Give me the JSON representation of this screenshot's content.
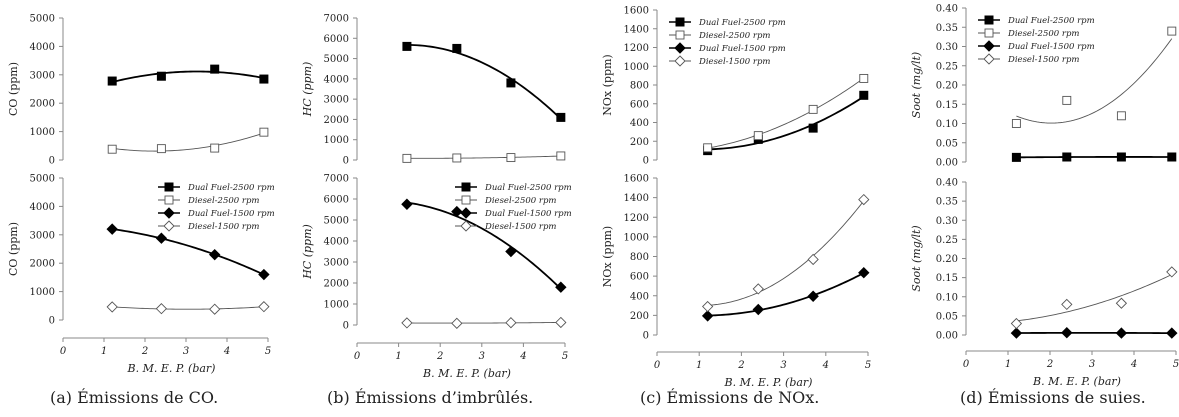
{
  "panels": [
    {
      "caption": "(a) Émissions de CO.",
      "xlabel": "B. M. E. P. (bar)",
      "xlim": [
        0,
        5
      ],
      "xticks": [
        0,
        1,
        2,
        3,
        4,
        5
      ],
      "legend_in": "bottom",
      "top": {
        "ylabel": "CO (ppm)",
        "ylim": [
          0,
          5000
        ],
        "yticks": [
          0,
          1000,
          2000,
          3000,
          4000,
          5000
        ],
        "ytick_labels": [
          "0",
          "1000",
          "2000",
          "3000",
          "4000",
          "5000"
        ]
      },
      "bottom": {
        "ylabel": "CO (ppm)",
        "ylim": [
          0,
          5000
        ],
        "yticks": [
          0,
          1000,
          2000,
          3000,
          4000,
          5000
        ],
        "ytick_labels": [
          "0",
          "1000",
          "2000",
          "3000",
          "4000",
          "5000"
        ]
      }
    },
    {
      "caption": "(b) Émissions d’imbrûlés.",
      "xlabel": "B. M. E. P. (bar)",
      "xlim": [
        0,
        5
      ],
      "xticks": [
        0,
        1,
        2,
        3,
        4,
        5
      ],
      "legend_in": "bottom",
      "top": {
        "ylabel": "HC (ppm)",
        "ylim": [
          0,
          7000
        ],
        "yticks": [
          0,
          1000,
          2000,
          3000,
          4000,
          5000,
          6000,
          7000
        ],
        "ytick_labels": [
          "0",
          "1000",
          "2000",
          "3000",
          "4000",
          "5000",
          "6000",
          "7000"
        ]
      },
      "bottom": {
        "ylabel": "HC (ppm)",
        "ylim": [
          0,
          7000
        ],
        "yticks": [
          0,
          1000,
          2000,
          3000,
          4000,
          5000,
          6000,
          7000
        ],
        "ytick_labels": [
          "0",
          "1000",
          "2000",
          "3000",
          "4000",
          "5000",
          "6000",
          "7000"
        ]
      }
    },
    {
      "caption": "(c) Émissions de NOx.",
      "xlabel": "B. M. E. P. (bar)",
      "xlim": [
        0,
        5
      ],
      "xticks": [
        0,
        1,
        2,
        3,
        4,
        5
      ],
      "legend_in": "top",
      "top": {
        "ylabel": "NOx (ppm)",
        "ylim": [
          0,
          1600
        ],
        "yticks": [
          0,
          200,
          400,
          600,
          800,
          1000,
          1200,
          1400,
          1600
        ],
        "ytick_labels": [
          "0",
          "200",
          "400",
          "600",
          "800",
          "1000",
          "1200",
          "1400",
          "1600"
        ]
      },
      "bottom": {
        "ylabel": "NOx (ppm)",
        "ylim": [
          0,
          1600
        ],
        "yticks": [
          0,
          200,
          400,
          600,
          800,
          1000,
          1200,
          1400,
          1600
        ],
        "ytick_labels": [
          "0",
          "200",
          "400",
          "600",
          "800",
          "1000",
          "1200",
          "1400",
          "1600"
        ]
      }
    },
    {
      "caption": "(d) Émissions de suies.",
      "xlabel": "B. M. E. P. (bar)",
      "xlim": [
        0,
        5
      ],
      "xticks": [
        0,
        1,
        2,
        3,
        4,
        5
      ],
      "legend_in": "top",
      "top": {
        "ylabel": "Soot (mg/lt)",
        "ylim": [
          0,
          0.4
        ],
        "yticks": [
          0,
          0.05,
          0.1,
          0.15,
          0.2,
          0.25,
          0.3,
          0.35,
          0.4
        ],
        "ytick_labels": [
          "0.00",
          "0.05",
          "0.10",
          "0.15",
          "0.20",
          "0.25",
          "0.30",
          "0.35",
          "0.40"
        ]
      },
      "bottom": {
        "ylabel": "Soot (mg/lt)",
        "ylim": [
          0,
          0.4
        ],
        "yticks": [
          0,
          0.05,
          0.1,
          0.15,
          0.2,
          0.25,
          0.3,
          0.35,
          0.4
        ],
        "ytick_labels": [
          "0.00",
          "0.05",
          "0.10",
          "0.15",
          "0.20",
          "0.25",
          "0.30",
          "0.35",
          "0.40"
        ]
      }
    }
  ],
  "legend": [
    {
      "name": "Dual Fuel-2500 rpm",
      "marker": "square-filled"
    },
    {
      "name": "Diesel-2500 rpm",
      "marker": "square-open"
    },
    {
      "name": "Dual Fuel-1500 rpm",
      "marker": "diamond-filled"
    },
    {
      "name": "Diesel-1500 rpm",
      "marker": "diamond-open"
    }
  ],
  "chart_data": [
    {
      "type": "scatter",
      "panel": "a",
      "subplot": "top",
      "series": [
        {
          "name": "Dual Fuel-2500 rpm",
          "x": [
            1.2,
            2.4,
            3.7,
            4.9
          ],
          "y": [
            2780,
            2950,
            3200,
            2850
          ]
        },
        {
          "name": "Diesel-2500 rpm",
          "x": [
            1.2,
            2.4,
            3.7,
            4.9
          ],
          "y": [
            380,
            400,
            420,
            980
          ]
        }
      ]
    },
    {
      "type": "scatter",
      "panel": "a",
      "subplot": "bottom",
      "series": [
        {
          "name": "Dual Fuel-1500 rpm",
          "x": [
            1.2,
            2.4,
            3.7,
            4.9
          ],
          "y": [
            3200,
            2880,
            2300,
            1600
          ]
        },
        {
          "name": "Diesel-1500 rpm",
          "x": [
            1.2,
            2.4,
            3.7,
            4.9
          ],
          "y": [
            460,
            400,
            380,
            470
          ]
        }
      ]
    },
    {
      "type": "scatter",
      "panel": "b",
      "subplot": "top",
      "series": [
        {
          "name": "Dual Fuel-2500 rpm",
          "x": [
            1.2,
            2.4,
            3.7,
            4.9
          ],
          "y": [
            5600,
            5500,
            3800,
            2100
          ]
        },
        {
          "name": "Diesel-2500 rpm",
          "x": [
            1.2,
            2.4,
            3.7,
            4.9
          ],
          "y": [
            80,
            100,
            120,
            200
          ]
        }
      ]
    },
    {
      "type": "scatter",
      "panel": "b",
      "subplot": "bottom",
      "series": [
        {
          "name": "Dual Fuel-1500 rpm",
          "x": [
            1.2,
            2.4,
            3.7,
            4.9
          ],
          "y": [
            5750,
            5400,
            3500,
            1800
          ]
        },
        {
          "name": "Diesel-1500 rpm",
          "x": [
            1.2,
            2.4,
            3.7,
            4.9
          ],
          "y": [
            100,
            80,
            110,
            120
          ]
        }
      ]
    },
    {
      "type": "scatter",
      "panel": "c",
      "subplot": "top",
      "series": [
        {
          "name": "Dual Fuel-2500 rpm",
          "x": [
            1.2,
            2.4,
            3.7,
            4.9
          ],
          "y": [
            100,
            220,
            340,
            690
          ]
        },
        {
          "name": "Diesel-2500 rpm",
          "x": [
            1.2,
            2.4,
            3.7,
            4.9
          ],
          "y": [
            130,
            260,
            540,
            870
          ]
        }
      ]
    },
    {
      "type": "scatter",
      "panel": "c",
      "subplot": "bottom",
      "series": [
        {
          "name": "Dual Fuel-1500 rpm",
          "x": [
            1.2,
            2.4,
            3.7,
            4.9
          ],
          "y": [
            195,
            260,
            395,
            635
          ]
        },
        {
          "name": "Diesel-1500 rpm",
          "x": [
            1.2,
            2.4,
            3.7,
            4.9
          ],
          "y": [
            290,
            470,
            770,
            1380
          ]
        }
      ]
    },
    {
      "type": "scatter",
      "panel": "d",
      "subplot": "top",
      "series": [
        {
          "name": "Dual Fuel-2500 rpm",
          "x": [
            1.2,
            2.4,
            3.7,
            4.9
          ],
          "y": [
            0.012,
            0.013,
            0.013,
            0.013
          ]
        },
        {
          "name": "Diesel-2500 rpm",
          "x": [
            1.2,
            2.4,
            3.7,
            4.9
          ],
          "y": [
            0.1,
            0.16,
            0.12,
            0.34
          ]
        }
      ]
    },
    {
      "type": "scatter",
      "panel": "d",
      "subplot": "bottom",
      "series": [
        {
          "name": "Dual Fuel-1500 rpm",
          "x": [
            1.2,
            2.4,
            3.7,
            4.9
          ],
          "y": [
            0.005,
            0.006,
            0.005,
            0.005
          ]
        },
        {
          "name": "Diesel-1500 rpm",
          "x": [
            1.2,
            2.4,
            3.7,
            4.9
          ],
          "y": [
            0.03,
            0.08,
            0.083,
            0.165
          ]
        }
      ]
    }
  ]
}
